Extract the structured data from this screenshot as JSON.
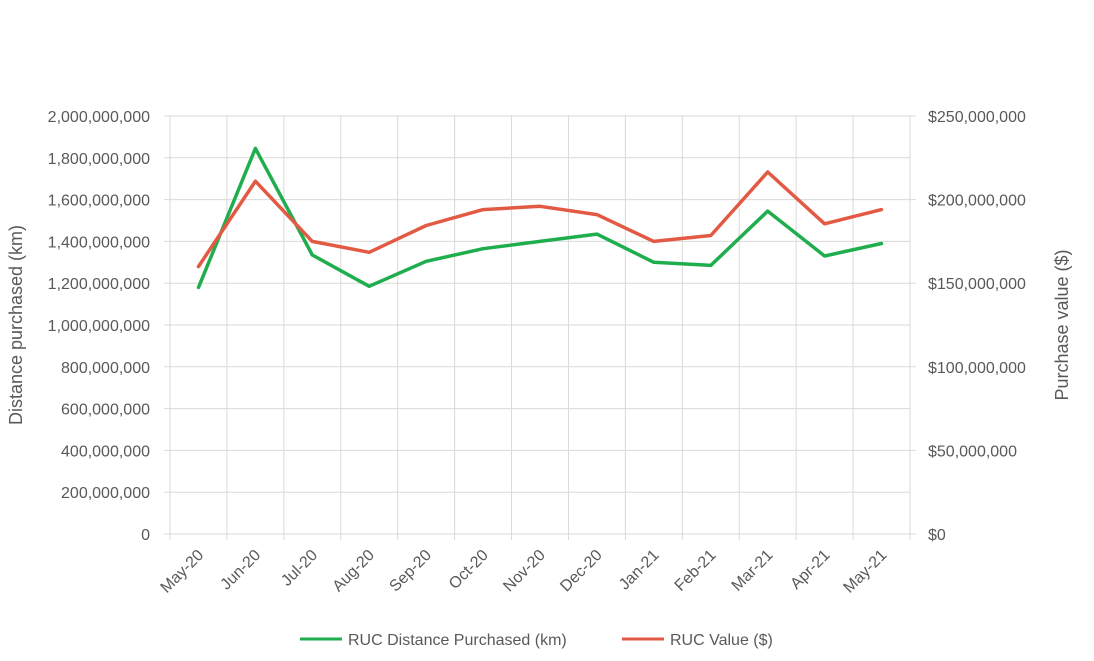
{
  "chart_data": {
    "type": "line",
    "title": "",
    "categories": [
      "May-20",
      "Jun-20",
      "Jul-20",
      "Aug-20",
      "Sep-20",
      "Oct-20",
      "Nov-20",
      "Dec-20",
      "Jan-21",
      "Feb-21",
      "Mar-21",
      "Apr-21",
      "May-21"
    ],
    "series": [
      {
        "name": "RUC Distance Purchased (km)",
        "axis": "left",
        "color": "#1fad4e",
        "values": [
          1180000000,
          1845000000,
          1335000000,
          1185000000,
          1305000000,
          1365000000,
          1400000000,
          1435000000,
          1300000000,
          1285000000,
          1545000000,
          1330000000,
          1390000000
        ]
      },
      {
        "name": "RUC Value ($)",
        "axis": "right",
        "color": "#e35a44",
        "values": [
          160000000,
          211000000,
          175000000,
          168500000,
          184500000,
          194000000,
          196000000,
          191000000,
          175000000,
          178500000,
          216500000,
          185500000,
          194000000
        ]
      }
    ],
    "ylabel": "Distance purchased (km)",
    "ylabel_right": "Purchase value ($)",
    "ylim": [
      0,
      2000000000
    ],
    "ylim_right": [
      0,
      250000000
    ],
    "yticks": [
      "0",
      "200,000,000",
      "400,000,000",
      "600,000,000",
      "800,000,000",
      "1,000,000,000",
      "1,200,000,000",
      "1,400,000,000",
      "1,600,000,000",
      "1,800,000,000",
      "2,000,000,000"
    ],
    "yticks_right": [
      "$0",
      "$50,000,000",
      "$100,000,000",
      "$150,000,000",
      "$200,000,000",
      "$250,000,000"
    ],
    "grid": true,
    "legend_position": "bottom"
  }
}
